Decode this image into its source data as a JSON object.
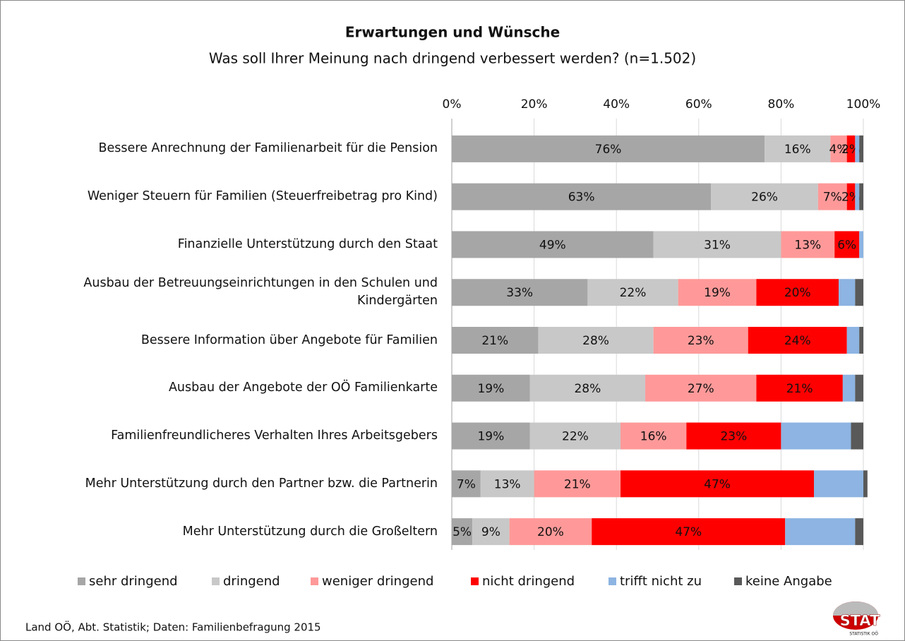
{
  "chart_data": {
    "type": "stacked-barh",
    "title": "Erwartungen und Wünsche",
    "subtitle": "Was soll Ihrer Meinung nach dringend verbessert werden? (n=1.502)",
    "categories": [
      "Bessere Anrechnung der Familienarbeit für die Pension",
      "Weniger Steuern für Familien (Steuerfreibetrag pro Kind)",
      "Finanzielle Unterstützung durch den Staat",
      "Ausbau der Betreuungseinrichtungen in den Schulen und Kindergärten",
      "Bessere Information über Angebote für Familien",
      "Ausbau der Angebote der OÖ Familienkarte",
      "Familienfreundlicheres Verhalten Ihres Arbeitsgebers",
      "Mehr Unterstützung durch den Partner bzw. die Partnerin",
      "Mehr Unterstützung durch die Großeltern"
    ],
    "series": [
      {
        "name": "sehr dringend",
        "color": "#a6a6a6",
        "values": [
          76,
          63,
          49,
          33,
          21,
          19,
          19,
          7,
          5
        ],
        "value_labels": [
          "76%",
          "63%",
          "49%",
          "33%",
          "21%",
          "19%",
          "19%",
          "7%",
          "5%"
        ]
      },
      {
        "name": "dringend",
        "color": "#c8c8c8",
        "values": [
          16,
          26,
          31,
          22,
          28,
          28,
          22,
          13,
          9
        ],
        "value_labels": [
          "16%",
          "26%",
          "31%",
          "22%",
          "28%",
          "28%",
          "22%",
          "13%",
          "9%"
        ]
      },
      {
        "name": "weniger dringend",
        "color": "#ff9999",
        "values": [
          4,
          7,
          13,
          19,
          23,
          27,
          16,
          21,
          20
        ],
        "value_labels": [
          "4%",
          "7%",
          "13%",
          "19%",
          "23%",
          "27%",
          "16%",
          "21%",
          "20%"
        ]
      },
      {
        "name": "nicht dringend",
        "color": "#ff0000",
        "values": [
          2,
          2,
          6,
          20,
          24,
          21,
          23,
          47,
          47
        ],
        "value_labels": [
          "2%",
          "2%",
          "6%",
          "20%",
          "24%",
          "21%",
          "23%",
          "47%",
          "47%"
        ]
      },
      {
        "name": "trifft nicht zu",
        "color": "#8db4e2",
        "values": [
          1,
          1,
          1,
          4,
          3,
          3,
          17,
          12,
          17
        ]
      },
      {
        "name": "keine Angabe",
        "color": "#595959",
        "values": [
          1,
          1,
          0,
          2,
          1,
          2,
          3,
          1,
          2
        ]
      }
    ],
    "xlim": [
      0,
      100
    ],
    "xticks": [
      {
        "value": 0,
        "label": "0%"
      },
      {
        "value": 20,
        "label": "20%"
      },
      {
        "value": 40,
        "label": "40%"
      },
      {
        "value": 60,
        "label": "60%"
      },
      {
        "value": 80,
        "label": "80%"
      },
      {
        "value": 100,
        "label": "100%"
      }
    ],
    "grid": true,
    "legend": "bottom",
    "source": "Land OÖ, Abt. Statistik; Daten: Familienbefragung 2015",
    "logo": {
      "text": "STAT",
      "subtext": "STATISTIK OÖ"
    }
  }
}
